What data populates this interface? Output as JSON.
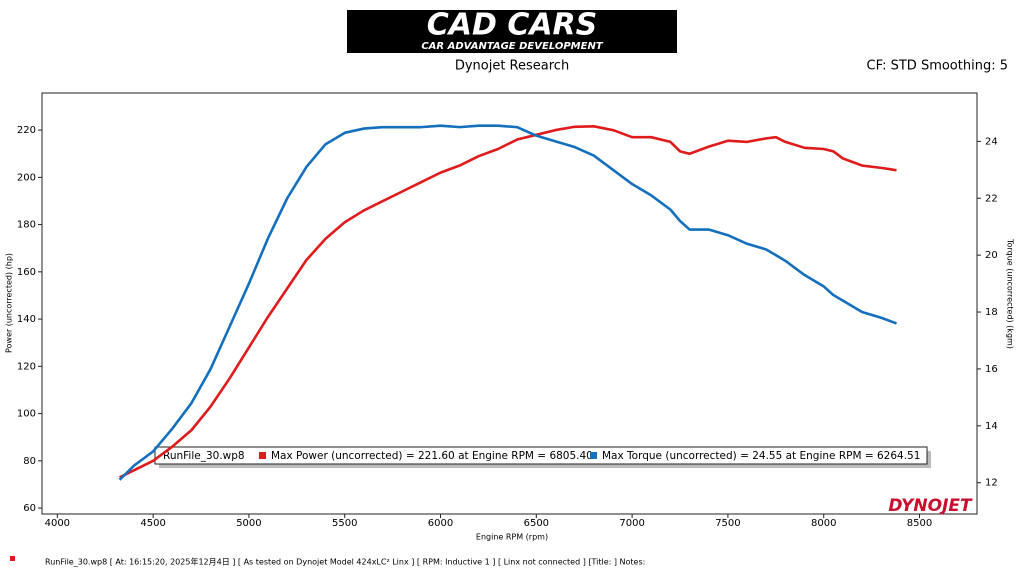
{
  "header": {
    "logo_title": "CAD CARS",
    "logo_subtitle": "CAR ADVANTAGE DEVELOPMENT",
    "subtitle": "Dynojet Research",
    "settings": "CF: STD Smoothing: 5"
  },
  "chart_data": {
    "type": "line",
    "xlabel": "Engine RPM (rpm)",
    "ylabel": "Power (uncorrected) (hp)",
    "y2label": "Torque (uncorrected) (kgm)",
    "legend_title": "RunFile_30.wp8",
    "x": [
      4325,
      4400,
      4500,
      4600,
      4700,
      4800,
      4900,
      5000,
      5100,
      5200,
      5300,
      5400,
      5500,
      5600,
      5700,
      5800,
      5900,
      6000,
      6100,
      6200,
      6300,
      6400,
      6500,
      6600,
      6700,
      6800,
      6900,
      7000,
      7100,
      7200,
      7250,
      7300,
      7400,
      7500,
      7600,
      7700,
      7750,
      7800,
      7900,
      8000,
      8050,
      8100,
      8200,
      8300,
      8380
    ],
    "series": [
      {
        "name": "Max Power (uncorrected) = 221.60 at Engine RPM = 6805.40",
        "color": "#e01b1b",
        "values": [
          73,
          76,
          80,
          86,
          93,
          103,
          115,
          128,
          141,
          153,
          165,
          174,
          181,
          186,
          190,
          194,
          198,
          202,
          205,
          209,
          212,
          216,
          218,
          220,
          221.4,
          221.6,
          220,
          217,
          217,
          215,
          211,
          210,
          213,
          215.5,
          215,
          216.5,
          217,
          215,
          212.5,
          212,
          211,
          208,
          205,
          204,
          203
        ]
      },
      {
        "name": "Max Torque (uncorrected) = 24.55 at Engine RPM = 6264.51",
        "color": "#1470bd",
        "axis": "y2",
        "values": [
          12.1,
          12.6,
          13.1,
          13.9,
          14.8,
          16.0,
          17.5,
          19.0,
          20.6,
          22.0,
          23.1,
          23.9,
          24.3,
          24.45,
          24.5,
          24.5,
          24.5,
          24.55,
          24.5,
          24.55,
          24.55,
          24.5,
          24.2,
          24.0,
          23.8,
          23.5,
          23.0,
          22.5,
          22.1,
          21.6,
          21.2,
          20.9,
          20.9,
          20.7,
          20.4,
          20.2,
          20.0,
          19.8,
          19.3,
          18.9,
          18.6,
          18.4,
          18.0,
          17.8,
          17.6
        ]
      }
    ],
    "xlim": [
      3920,
      8800
    ],
    "xticks": [
      4000,
      4500,
      5000,
      5500,
      6000,
      6500,
      7000,
      7500,
      8000,
      8500
    ],
    "ylim": [
      57.5,
      235.7
    ],
    "yticks": [
      60,
      80,
      100,
      120,
      140,
      160,
      180,
      200,
      220
    ],
    "y2lim": [
      10.9,
      25.7
    ],
    "y2ticks": [
      12,
      14,
      16,
      18,
      20,
      22,
      24
    ],
    "grid": false,
    "brand": "DYNOJET"
  },
  "footer": {
    "file_info": "RunFile_30.wp8  [  At:  16:15:20,  2025年12月4日 ]  [ As tested on Dynojet Model 424xLC² Linx ]  [ RPM: Inductive 1 ]  [ Linx not connected ]  [Title:  ]   Notes:"
  }
}
